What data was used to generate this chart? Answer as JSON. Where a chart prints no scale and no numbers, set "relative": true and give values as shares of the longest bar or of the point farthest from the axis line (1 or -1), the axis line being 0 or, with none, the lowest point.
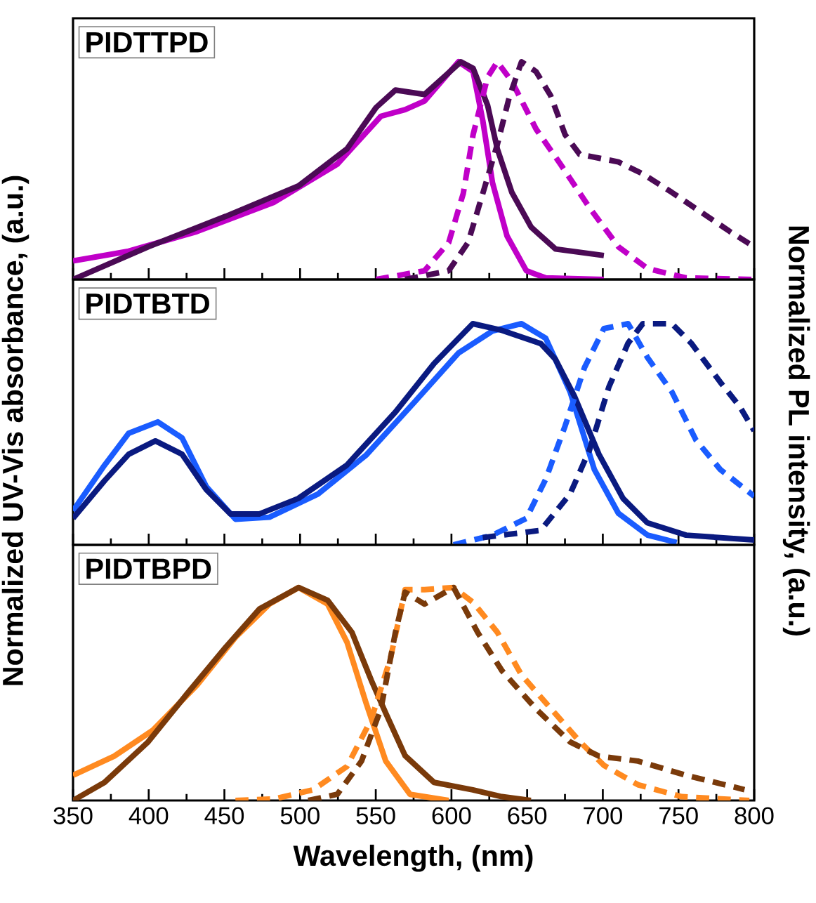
{
  "chart_data": [
    {
      "type": "line",
      "title": "PIDTTPD",
      "relative": true,
      "xlim": [
        350,
        800
      ],
      "xticks": [
        350,
        400,
        450,
        500,
        550,
        600,
        650,
        700,
        750,
        800
      ],
      "tick_labels": false,
      "marker": "none",
      "series": [
        {
          "color": "#c000c8",
          "line_style": "solid",
          "x": [
            350,
            386.8,
            431.7,
            482.9,
            524.6,
            553.4,
            569.4,
            582.2,
            604.6,
            614.3,
            620.7,
            627.1,
            636.7,
            649.5,
            662.3,
            700.7
          ],
          "values": [
            0.085,
            0.13,
            0.22,
            0.355,
            0.53,
            0.75,
            0.78,
            0.82,
            1.0,
            0.955,
            0.73,
            0.445,
            0.2,
            0.04,
            0.007,
            0
          ]
        },
        {
          "color": "#4b0a55",
          "line_style": "solid",
          "x": [
            350,
            399.6,
            450.9,
            499,
            531,
            550.2,
            563,
            582.2,
            595,
            606.2,
            614.3,
            623.9,
            630.3,
            639.9,
            652.7,
            668.7,
            700.7
          ],
          "values": [
            0,
            0.15,
            0.29,
            0.43,
            0.6,
            0.79,
            0.87,
            0.85,
            0.93,
            1.0,
            0.97,
            0.8,
            0.6,
            0.4,
            0.24,
            0.14,
            0.11
          ]
        },
        {
          "color": "#c000c8",
          "line_style": "dashed",
          "x": [
            550.2,
            582.2,
            598.2,
            607.8,
            614.3,
            623.9,
            630.3,
            639.9,
            656,
            672,
            691.2,
            710.3,
            729.6,
            755.2,
            800
          ],
          "values": [
            0,
            0.04,
            0.17,
            0.395,
            0.665,
            0.93,
            1.0,
            0.91,
            0.69,
            0.53,
            0.33,
            0.15,
            0.05,
            0.007,
            0
          ]
        },
        {
          "color": "#4b0a55",
          "line_style": "dashed",
          "x": [
            569.4,
            598.2,
            611,
            620.7,
            630.3,
            638.3,
            646.3,
            655.9,
            665.5,
            675.1,
            684.7,
            710.3,
            726.4,
            745.6,
            764.8,
            784,
            800
          ],
          "values": [
            0,
            0.04,
            0.17,
            0.395,
            0.62,
            0.84,
            1.0,
            0.955,
            0.845,
            0.665,
            0.575,
            0.54,
            0.485,
            0.4,
            0.31,
            0.22,
            0.15
          ]
        }
      ]
    },
    {
      "type": "line",
      "title": "PIDTBTD",
      "ylabel": "Normalized UV-Vis absorbance, (a.u.)",
      "y2label": "Normalized PL intensity, (a.u.)",
      "relative": true,
      "xlim": [
        350,
        800
      ],
      "xticks": [
        350,
        400,
        450,
        500,
        550,
        600,
        650,
        700,
        750,
        800
      ],
      "tick_labels": false,
      "marker": "none",
      "series": [
        {
          "color": "#1a5cff",
          "line_style": "solid",
          "x": [
            350,
            370.8,
            386.8,
            406,
            422,
            438,
            457.3,
            479.7,
            511.8,
            543.8,
            575.9,
            604.7,
            627.1,
            646.3,
            662.3,
            678.4,
            694.4,
            710.3,
            729.6,
            748.8
          ],
          "values": [
            0.154,
            0.36,
            0.505,
            0.556,
            0.484,
            0.264,
            0.116,
            0.125,
            0.23,
            0.407,
            0.648,
            0.868,
            0.967,
            1.0,
            0.934,
            0.692,
            0.341,
            0.143,
            0.044,
            0.011
          ]
        },
        {
          "color": "#0a1a80",
          "line_style": "solid",
          "x": [
            350,
            370.8,
            386.8,
            404.4,
            422,
            438,
            454,
            473.2,
            498.8,
            530.8,
            562.9,
            588.5,
            614.1,
            633.3,
            659,
            668.6,
            681.4,
            697.4,
            713.4,
            729.4,
            755,
            800
          ],
          "values": [
            0.12,
            0.29,
            0.41,
            0.47,
            0.41,
            0.25,
            0.14,
            0.14,
            0.21,
            0.36,
            0.6,
            0.82,
            1.0,
            0.97,
            0.91,
            0.84,
            0.67,
            0.41,
            0.21,
            0.1,
            0.044,
            0.022
          ]
        },
        {
          "color": "#1a5cff",
          "line_style": "dashed",
          "x": [
            601.4,
            627.1,
            649.5,
            662.3,
            675.1,
            687.9,
            700.7,
            716.7,
            729.6,
            745.6,
            761.6,
            777.6,
            800
          ],
          "values": [
            0,
            0.044,
            0.12,
            0.297,
            0.538,
            0.802,
            0.978,
            1.0,
            0.846,
            0.692,
            0.473,
            0.341,
            0.22
          ]
        },
        {
          "color": "#0a1a80",
          "line_style": "dashed",
          "x": [
            620.7,
            646.3,
            659,
            678.4,
            691.2,
            704,
            716.7,
            726.4,
            745.6,
            758.4,
            777.6,
            790.4,
            800
          ],
          "values": [
            0.033,
            0.055,
            0.066,
            0.231,
            0.429,
            0.714,
            0.912,
            1.0,
            1.0,
            0.912,
            0.736,
            0.626,
            0.516
          ]
        }
      ]
    },
    {
      "type": "line",
      "title": "PIDTBPD",
      "xlabel": "Wavelength, (nm)",
      "relative": true,
      "xlim": [
        350,
        800
      ],
      "xticks": [
        350,
        400,
        450,
        500,
        550,
        600,
        650,
        700,
        750,
        800
      ],
      "tick_labels": "x",
      "marker": "none",
      "series": [
        {
          "color": "#ff8a20",
          "line_style": "solid",
          "x": [
            350,
            377.2,
            402.8,
            431.7,
            457.3,
            479.7,
            499,
            518.2,
            531,
            543.8,
            556.6,
            572.6,
            598.2
          ],
          "values": [
            0.118,
            0.208,
            0.33,
            0.54,
            0.766,
            0.922,
            1.0,
            0.922,
            0.743,
            0.453,
            0.185,
            0.029,
            0
          ]
        },
        {
          "color": "#7a3a0a",
          "line_style": "solid",
          "x": [
            350,
            370.8,
            399.6,
            425.2,
            450.9,
            473.3,
            499,
            518.2,
            534.2,
            547,
            556.6,
            569.4,
            588.5,
            614.1,
            633.3,
            652.5
          ],
          "values": [
            0,
            0.085,
            0.275,
            0.5,
            0.72,
            0.9,
            1.0,
            0.94,
            0.79,
            0.565,
            0.41,
            0.21,
            0.085,
            0.05,
            0.018,
            0
          ]
        },
        {
          "color": "#ff8a20",
          "line_style": "dashed",
          "x": [
            457.3,
            482.9,
            508.6,
            531,
            547,
            559.8,
            569.4,
            582.2,
            601.4,
            614.3,
            630.3,
            646.3,
            665.5,
            684.7,
            700.7,
            723.2,
            752,
            796.8
          ],
          "values": [
            0,
            0.007,
            0.05,
            0.16,
            0.38,
            0.67,
            0.99,
            0.99,
            1.0,
            0.93,
            0.79,
            0.589,
            0.433,
            0.277,
            0.165,
            0.074,
            0.018,
            0
          ]
        },
        {
          "color": "#7a3a0a",
          "line_style": "dashed",
          "x": [
            505.4,
            524.6,
            540.6,
            553.4,
            563,
            569.4,
            582.2,
            601.4,
            617.4,
            633.4,
            655.9,
            678.4,
            697.5,
            723.2,
            755.2,
            793.6
          ],
          "values": [
            0,
            0.029,
            0.185,
            0.43,
            0.79,
            0.978,
            0.922,
            1.0,
            0.788,
            0.609,
            0.43,
            0.275,
            0.208,
            0.185,
            0.118,
            0.051
          ]
        }
      ]
    }
  ]
}
